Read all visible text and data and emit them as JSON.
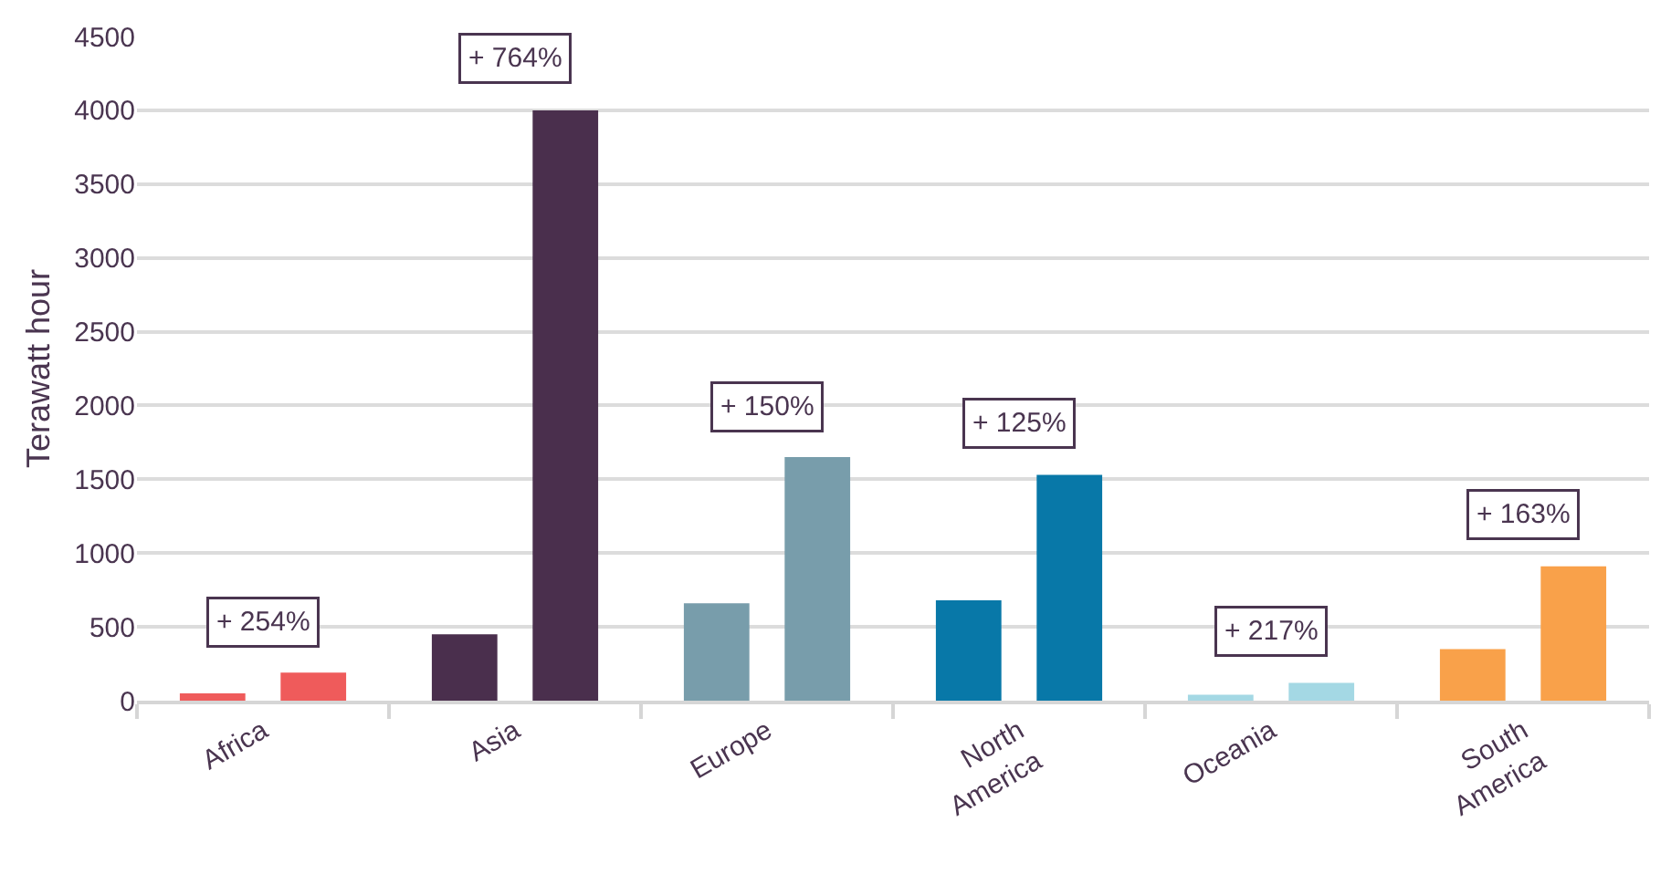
{
  "chart_data": {
    "type": "bar",
    "ylabel": "Terawatt hour",
    "categories": [
      "Africa",
      "Asia",
      "Europe",
      "North America",
      "Oceania",
      "South America"
    ],
    "series": [
      {
        "colors": [
          "#ef5b5b",
          "#4a2f4d",
          "#789dab",
          "#0878a8",
          "#a4d8e4",
          "#f9a14a"
        ],
        "values": [
          50,
          450,
          660,
          680,
          40,
          350
        ]
      },
      {
        "colors": [
          "#ef5b5b",
          "#4a2f4d",
          "#789dab",
          "#0878a8",
          "#a4d8e4",
          "#f9a14a"
        ],
        "values": [
          190,
          4000,
          1650,
          1530,
          120,
          910
        ]
      }
    ],
    "ylim": [
      0,
      4500
    ],
    "yticks": [
      0,
      500,
      1000,
      1500,
      2000,
      2500,
      3000,
      3500,
      4000,
      4500
    ],
    "grid": "y",
    "annotations": [
      "+ 254%",
      "+ 764%",
      "+ 150%",
      "+ 125%",
      "+ 217%",
      "+ 163%"
    ]
  }
}
